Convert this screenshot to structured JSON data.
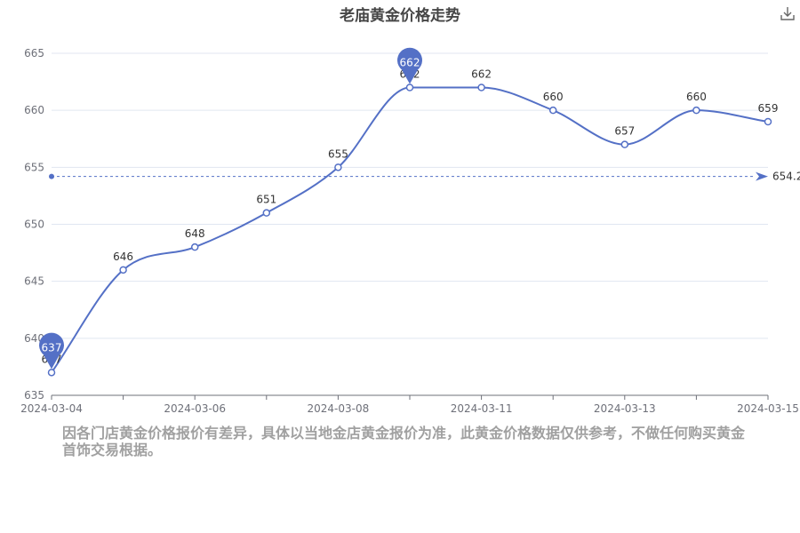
{
  "title": "老庙黄金价格走势",
  "toolbox": {
    "download_icon": "download-icon"
  },
  "disclaimer": "因各门店黄金价格报价有差异，具体以当地金店黄金报价为准，此黄金价格数据仅供参考，不做任何购买黄金首饰交易根据。",
  "chart_data": {
    "type": "line",
    "x_axis_labels": [
      "2024-03-04",
      "2024-03-06",
      "2024-03-08",
      "2024-03-11",
      "2024-03-13",
      "2024-03-15"
    ],
    "x": [
      "2024-03-04",
      "2024-03-05",
      "2024-03-06",
      "2024-03-07",
      "2024-03-08",
      "2024-03-09",
      "2024-03-11",
      "2024-03-12",
      "2024-03-13",
      "2024-03-14",
      "2024-03-15"
    ],
    "values": [
      637,
      646,
      648,
      651,
      655,
      662,
      662,
      660,
      657,
      660,
      659
    ],
    "ylim": [
      635,
      665
    ],
    "y_ticks": [
      635,
      640,
      645,
      650,
      655,
      660,
      665
    ],
    "max_marker": 662,
    "min_marker": 637,
    "average_line": 654.2,
    "series_color": "#5470c6",
    "grid": true,
    "smooth": true
  }
}
